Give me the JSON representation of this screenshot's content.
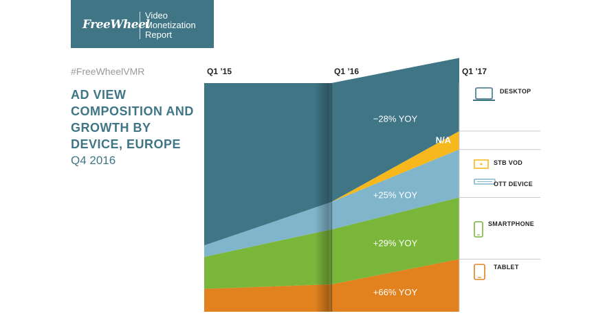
{
  "logo": {
    "brand": "FreeWheel",
    "line1": "Video",
    "line2": "Monetization",
    "line3": "Report"
  },
  "hashtag": "#FreeWheelVMR",
  "title": "AD VIEW COMPOSITION AND GROWTH BY DEVICE, EUROPE",
  "subtitle": "Q4 2016",
  "colors": {
    "desktop": "#3f7585",
    "stb_vod": "#f6b81c",
    "ott_device": "#80b5cc",
    "smartphone": "#7ab63a",
    "tablet": "#e2821e",
    "accent": "#3f7585"
  },
  "chart_data": {
    "type": "area",
    "x": [
      "Q1 ’15",
      "Q1 ’16",
      "Q1 ’17"
    ],
    "ylim": [
      0,
      100
    ],
    "stack_order_bottom_to_top": [
      "Tablet",
      "Smartphone",
      "OTT Device",
      "STB VOD",
      "Desktop"
    ],
    "series": [
      {
        "name": "Tablet",
        "icon": "tablet-icon",
        "color": "#e2821e",
        "values": [
          10,
          12,
          23
        ],
        "yoy_label": "+66% YOY"
      },
      {
        "name": "Smartphone",
        "icon": "smartphone-icon",
        "color": "#7ab63a",
        "values": [
          14,
          24,
          27
        ],
        "yoy_label": "+29% YOY"
      },
      {
        "name": "OTT Device",
        "icon": "ott-device-icon",
        "color": "#80b5cc",
        "values": [
          5,
          12,
          21
        ],
        "yoy_label": "+25% YOY"
      },
      {
        "name": "STB VOD",
        "icon": "stb-vod-icon",
        "color": "#f6b81c",
        "values": [
          0,
          0,
          8
        ],
        "yoy_label": "N/A"
      },
      {
        "name": "Desktop",
        "icon": "desktop-icon",
        "color": "#3f7585",
        "values": [
          71,
          52,
          32
        ],
        "yoy_label": "−28% YOY"
      }
    ],
    "legend": [
      "Desktop",
      "STB VOD",
      "OTT Device",
      "Smartphone",
      "Tablet"
    ],
    "legend_placement": "right"
  }
}
